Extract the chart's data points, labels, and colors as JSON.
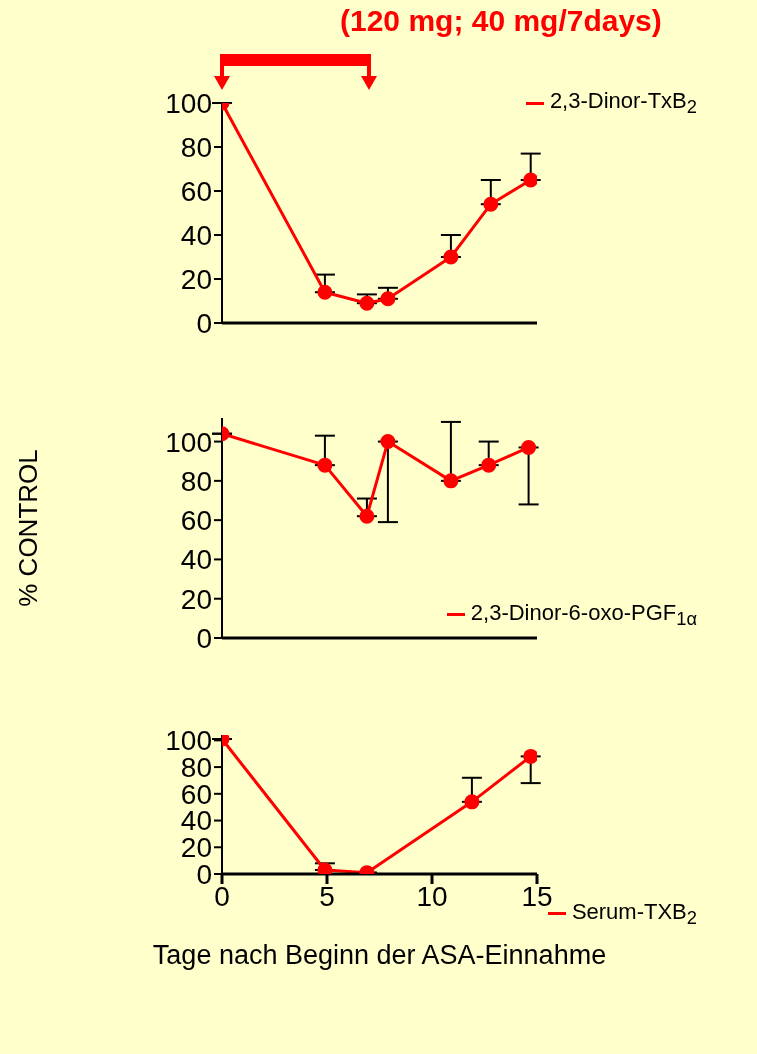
{
  "chart_data": [
    {
      "type": "line",
      "title": "(120 mg; 40 mg/7days)",
      "x": [
        0,
        4.9,
        6.9,
        7.9,
        10.9,
        12.8,
        14.7
      ],
      "series": [
        {
          "name": "2,3-Dinor-TxB$_{2}$",
          "color": "#ff0000",
          "values": [
            100,
            14,
            9,
            11,
            30,
            54,
            65
          ],
          "errors": [
            null,
            [
              14,
              22
            ],
            [
              9,
              13
            ],
            [
              11,
              16
            ],
            [
              30,
              40
            ],
            [
              54,
              65
            ],
            [
              65,
              77
            ]
          ]
        }
      ],
      "xlim": [
        0,
        15
      ],
      "xticks": [
        0,
        5,
        10,
        15
      ],
      "ylim": [
        0,
        100
      ],
      "yticks": [
        0,
        20,
        40,
        60,
        80,
        100
      ],
      "tick_labels": "y",
      "marker": "circle",
      "legend": "top right"
    },
    {
      "type": "line",
      "ylabel": "% CONTROL",
      "x": [
        0,
        4.9,
        6.9,
        7.9,
        10.9,
        12.7,
        14.6
      ],
      "series": [
        {
          "name": "2,3-Dinor-6-oxo-PGF$_{1α}$",
          "color": "#ff0000",
          "values": [
            104,
            88,
            62,
            100,
            80,
            88,
            97
          ],
          "errors": [
            null,
            [
              88,
              103
            ],
            [
              62,
              71
            ],
            [
              59,
              100
            ],
            [
              80,
              110
            ],
            [
              88,
              100
            ],
            [
              68,
              97
            ]
          ]
        }
      ],
      "xlim": [
        0,
        15
      ],
      "xticks": [
        0,
        5,
        10,
        15
      ],
      "ylim": [
        0,
        112
      ],
      "yticks": [
        0,
        20,
        40,
        60,
        80,
        100
      ],
      "tick_labels": "y",
      "marker": "circle",
      "legend": "bottom right"
    },
    {
      "type": "line",
      "xlabel": "Tage nach Beginn der ASA-Einnahme",
      "x": [
        0,
        4.9,
        6.9,
        11.9,
        14.7
      ],
      "series": [
        {
          "name": "Serum-TXB$_{2}$",
          "color": "#ff0000",
          "values": [
            101,
            3,
            1,
            54,
            88
          ],
          "errors": [
            null,
            [
              3,
              8
            ],
            null,
            [
              54,
              72
            ],
            [
              68,
              88
            ]
          ]
        }
      ],
      "xlim": [
        0,
        15
      ],
      "xticks": [
        0,
        5,
        10,
        15
      ],
      "ylim": [
        0,
        104
      ],
      "yticks": [
        0,
        20,
        40,
        60,
        80,
        100
      ],
      "marker": "circle",
      "legend": "bottom right"
    }
  ]
}
